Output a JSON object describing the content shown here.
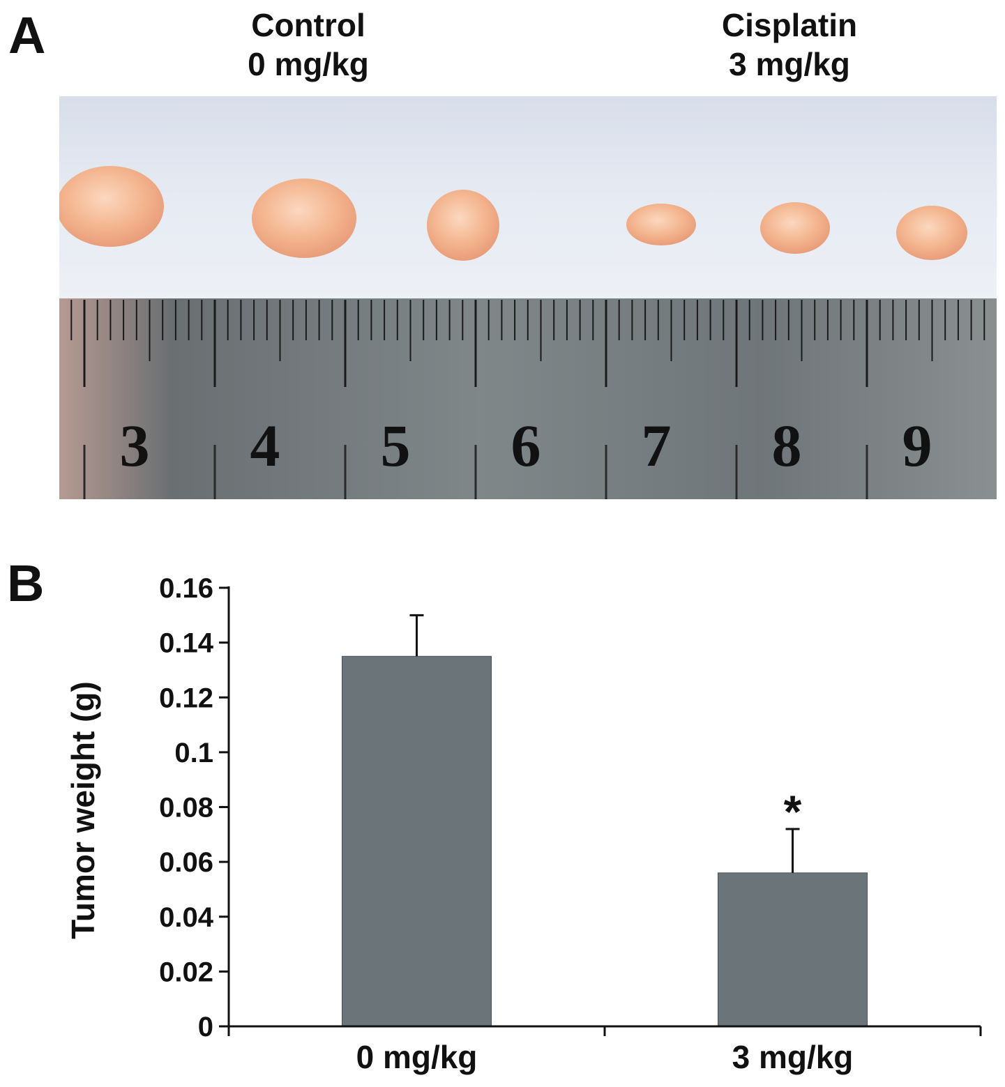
{
  "panels": {
    "a": "A",
    "b": "B"
  },
  "photo": {
    "groups": [
      {
        "name": "Control",
        "dose": "0 mg/kg"
      },
      {
        "name": "Cisplatin",
        "dose": "3 mg/kg"
      }
    ],
    "ruler_numbers": [
      "3",
      "4",
      "5",
      "6",
      "7",
      "8",
      "9"
    ],
    "colors": {
      "background": "#dfe5ef",
      "tumor": "#f0b896",
      "ruler": "#7d8588"
    }
  },
  "chart_data": {
    "type": "bar",
    "categories": [
      "0 mg/kg",
      "3 mg/kg"
    ],
    "values": [
      0.135,
      0.056
    ],
    "errors": [
      0.015,
      0.016
    ],
    "annotations": [
      "",
      "*"
    ],
    "ylabel": "Tumor weight (g)",
    "xlabel": "",
    "ylim": [
      0,
      0.16
    ],
    "yticks": [
      "0",
      "0.02",
      "0.04",
      "0.06",
      "0.08",
      "0.1",
      "0.12",
      "0.14",
      "0.16"
    ],
    "bar_color": "#6b7479",
    "grid": false
  }
}
